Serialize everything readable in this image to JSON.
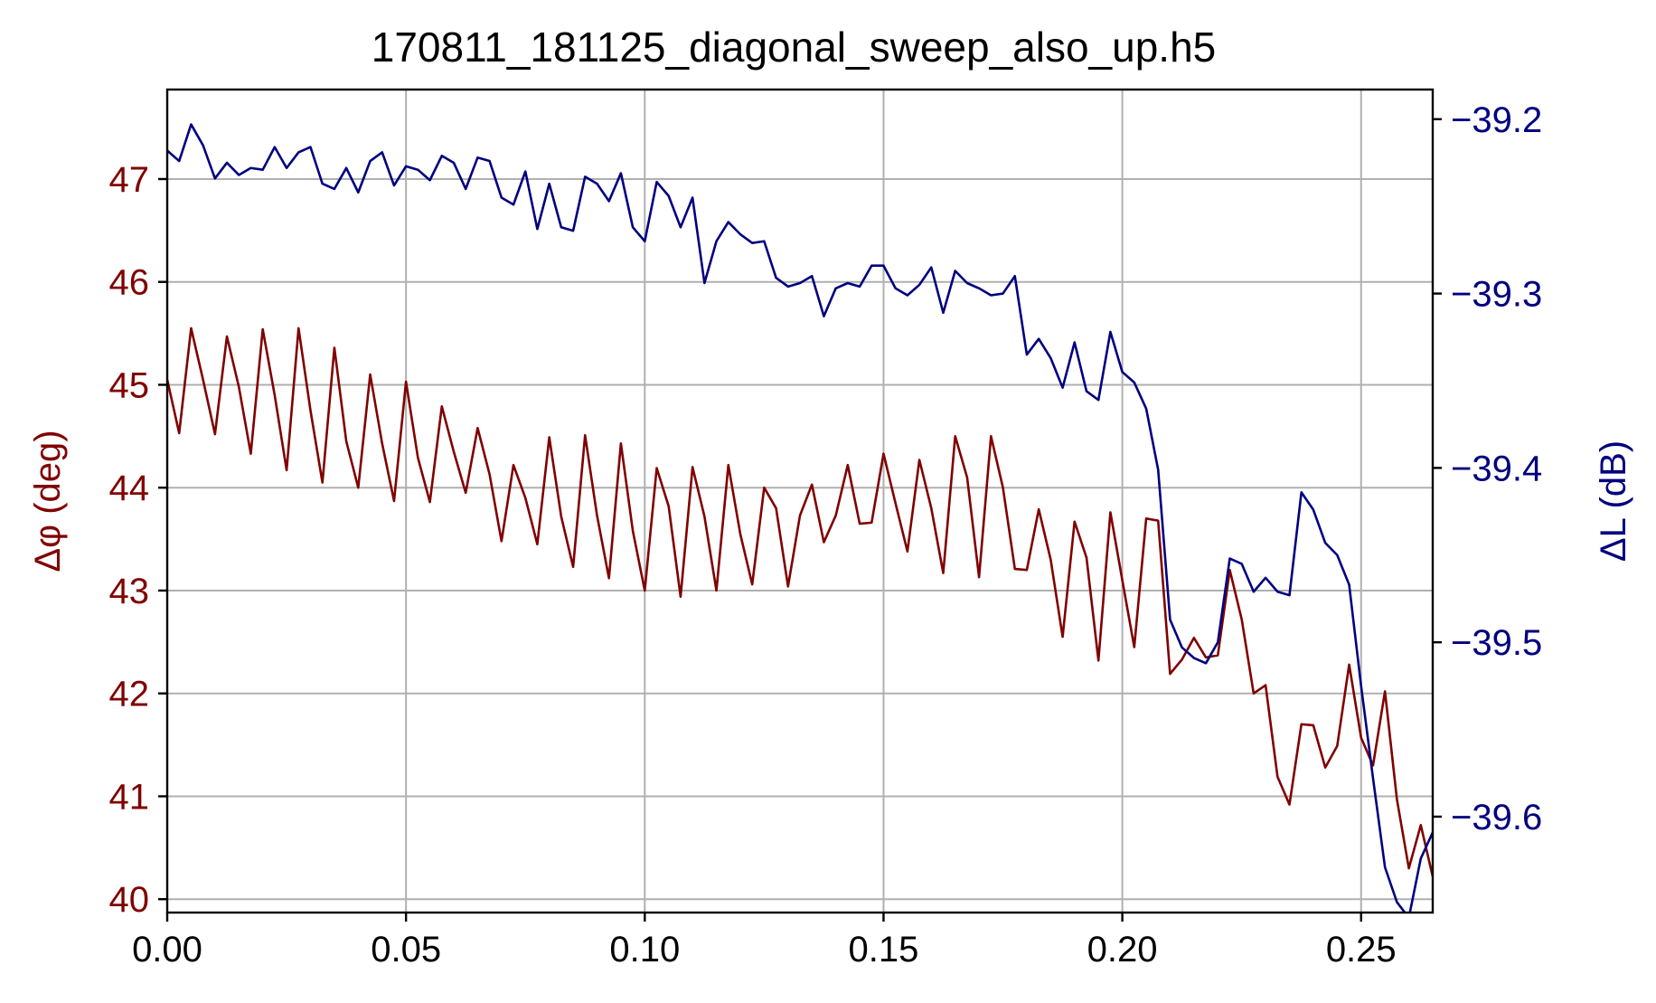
{
  "colors": {
    "phase": "#800000",
    "loss": "#000080",
    "grid": "#b0b0b0",
    "axis": "#000000"
  },
  "chart_data": {
    "type": "line",
    "title": "170811_181125_diagonal_sweep_also_up.h5",
    "xlabel": "",
    "ylabel_left": "Δφ (deg)",
    "ylabel_right": "ΔL (dB)",
    "xlim": [
      0.0,
      0.265
    ],
    "ylim_left": [
      39.87,
      47.87
    ],
    "ylim_right": [
      -39.655,
      -39.183
    ],
    "grid": true,
    "legend": "none",
    "x_ticks": [
      "0.00",
      "0.05",
      "0.10",
      "0.15",
      "0.20",
      "0.25"
    ],
    "y_ticks_left": [
      "40",
      "41",
      "42",
      "43",
      "44",
      "45",
      "46",
      "47"
    ],
    "y_ticks_right": [
      "−39.6",
      "−39.5",
      "−39.4",
      "−39.3",
      "−39.2"
    ],
    "series": [
      {
        "axis": "left",
        "color": "#800000",
        "x": [
          0.0,
          0.0025,
          0.005,
          0.0075,
          0.01,
          0.0125,
          0.015,
          0.0175,
          0.02,
          0.0225,
          0.025,
          0.0275,
          0.03,
          0.0325,
          0.035,
          0.0375,
          0.04,
          0.0425,
          0.045,
          0.0475,
          0.05,
          0.0525,
          0.055,
          0.0575,
          0.06,
          0.0625,
          0.065,
          0.0675,
          0.07,
          0.0725,
          0.075,
          0.0775,
          0.08,
          0.0825,
          0.085,
          0.0875,
          0.09,
          0.0925,
          0.095,
          0.0975,
          0.1,
          0.1025,
          0.105,
          0.1075,
          0.11,
          0.1125,
          0.115,
          0.1175,
          0.12,
          0.1225,
          0.125,
          0.1275,
          0.13,
          0.1325,
          0.135,
          0.1375,
          0.14,
          0.1425,
          0.145,
          0.1475,
          0.15,
          0.1525,
          0.155,
          0.1575,
          0.16,
          0.1625,
          0.165,
          0.1675,
          0.17,
          0.1725,
          0.175,
          0.1775,
          0.18,
          0.1825,
          0.185,
          0.1875,
          0.19,
          0.1925,
          0.195,
          0.1975,
          0.2,
          0.2025,
          0.205,
          0.2075,
          0.21,
          0.2125,
          0.215,
          0.2175,
          0.22,
          0.2225,
          0.225,
          0.2275,
          0.23,
          0.2325,
          0.235,
          0.2375,
          0.24,
          0.2425,
          0.245,
          0.2475,
          0.25,
          0.2525,
          0.255,
          0.2575,
          0.26,
          0.2625,
          0.265
        ],
        "y": [
          45.05,
          44.53,
          45.55,
          45.05,
          44.52,
          45.47,
          44.98,
          44.33,
          45.54,
          44.9,
          44.17,
          45.55,
          44.75,
          44.05,
          45.36,
          44.45,
          44.0,
          45.1,
          44.43,
          43.87,
          45.03,
          44.29,
          43.86,
          44.79,
          44.35,
          43.95,
          44.58,
          44.13,
          43.48,
          44.22,
          43.9,
          43.45,
          44.49,
          43.72,
          43.23,
          44.51,
          43.73,
          43.12,
          44.43,
          43.58,
          43.0,
          44.19,
          43.82,
          42.94,
          44.2,
          43.72,
          43.0,
          44.22,
          43.55,
          43.06,
          44.0,
          43.8,
          43.04,
          43.73,
          44.03,
          43.47,
          43.73,
          44.22,
          43.65,
          43.66,
          44.33,
          43.85,
          43.38,
          44.27,
          43.8,
          43.17,
          44.5,
          44.1,
          43.13,
          44.5,
          44.0,
          43.21,
          43.2,
          43.79,
          43.3,
          42.55,
          43.67,
          43.32,
          42.32,
          43.76,
          43.1,
          42.45,
          43.7,
          43.68,
          42.19,
          42.33,
          42.54,
          42.35,
          42.37,
          43.2,
          42.72,
          42.0,
          42.08,
          41.19,
          40.92,
          41.7,
          41.69,
          41.28,
          41.49,
          42.28,
          41.57,
          41.3,
          42.02,
          40.97,
          40.3,
          40.72,
          40.22
        ]
      },
      {
        "axis": "right",
        "color": "#000080",
        "x": [
          0.0,
          0.0025,
          0.005,
          0.0075,
          0.01,
          0.0125,
          0.015,
          0.0175,
          0.02,
          0.0225,
          0.025,
          0.0275,
          0.03,
          0.0325,
          0.035,
          0.0375,
          0.04,
          0.0425,
          0.045,
          0.0475,
          0.05,
          0.0525,
          0.055,
          0.0575,
          0.06,
          0.0625,
          0.065,
          0.0675,
          0.07,
          0.0725,
          0.075,
          0.0775,
          0.08,
          0.0825,
          0.085,
          0.0875,
          0.09,
          0.0925,
          0.095,
          0.0975,
          0.1,
          0.1025,
          0.105,
          0.1075,
          0.11,
          0.1125,
          0.115,
          0.1175,
          0.12,
          0.1225,
          0.125,
          0.1275,
          0.13,
          0.1325,
          0.135,
          0.1375,
          0.14,
          0.1425,
          0.145,
          0.1475,
          0.15,
          0.1525,
          0.155,
          0.1575,
          0.16,
          0.1625,
          0.165,
          0.1675,
          0.17,
          0.1725,
          0.175,
          0.1775,
          0.18,
          0.1825,
          0.185,
          0.1875,
          0.19,
          0.1925,
          0.195,
          0.1975,
          0.2,
          0.2025,
          0.205,
          0.2075,
          0.21,
          0.2125,
          0.215,
          0.2175,
          0.22,
          0.2225,
          0.225,
          0.2275,
          0.23,
          0.2325,
          0.235,
          0.2375,
          0.24,
          0.2425,
          0.245,
          0.2475,
          0.25,
          0.2525,
          0.255,
          0.2575,
          0.26,
          0.2625,
          0.265
        ],
        "y": [
          -39.218,
          -39.224,
          -39.203,
          -39.215,
          -39.234,
          -39.225,
          -39.232,
          -39.228,
          -39.229,
          -39.216,
          -39.228,
          -39.219,
          -39.216,
          -39.237,
          -39.24,
          -39.228,
          -39.242,
          -39.224,
          -39.219,
          -39.238,
          -39.227,
          -39.229,
          -39.235,
          -39.221,
          -39.225,
          -39.24,
          -39.222,
          -39.224,
          -39.245,
          -39.249,
          -39.23,
          -39.263,
          -39.237,
          -39.262,
          -39.264,
          -39.233,
          -39.237,
          -39.247,
          -39.231,
          -39.262,
          -39.27,
          -39.236,
          -39.244,
          -39.262,
          -39.245,
          -39.294,
          -39.27,
          -39.259,
          -39.266,
          -39.271,
          -39.27,
          -39.291,
          -39.296,
          -39.294,
          -39.29,
          -39.313,
          -39.297,
          -39.294,
          -39.296,
          -39.284,
          -39.284,
          -39.297,
          -39.301,
          -39.295,
          -39.285,
          -39.311,
          -39.287,
          -39.294,
          -39.297,
          -39.301,
          -39.3,
          -39.29,
          -39.335,
          -39.326,
          -39.337,
          -39.354,
          -39.328,
          -39.356,
          -39.361,
          -39.322,
          -39.345,
          -39.351,
          -39.366,
          -39.401,
          -39.487,
          -39.503,
          -39.509,
          -39.512,
          -39.5,
          -39.452,
          -39.455,
          -39.471,
          -39.463,
          -39.471,
          -39.473,
          -39.414,
          -39.424,
          -39.443,
          -39.45,
          -39.467,
          -39.525,
          -39.578,
          -39.629,
          -39.649,
          -39.658,
          -39.624,
          -39.609
        ]
      }
    ]
  }
}
